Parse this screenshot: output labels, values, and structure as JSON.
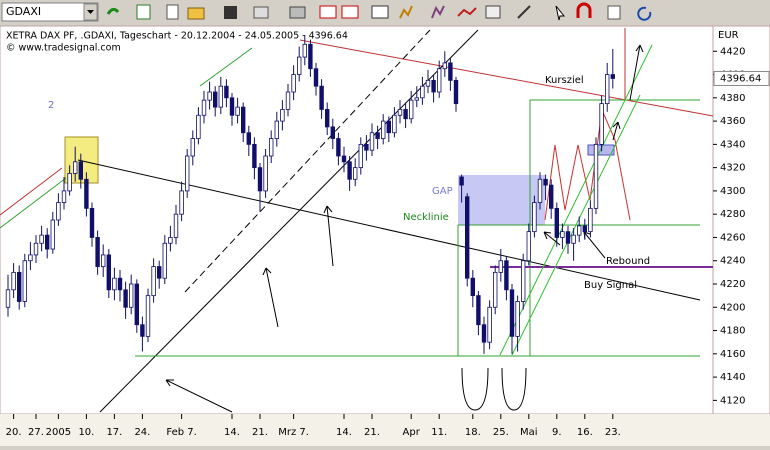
{
  "toolbar": {
    "symbol": "GDAXI"
  },
  "chart_data": {
    "type": "candlestick",
    "title": "XETRA DAX PF, .GDAXI, Tageschart - 20.12.2004 - 24.05.2005 - 4396.64",
    "subtitle": "© www.tradesignal.com",
    "y_unit": "EUR",
    "last_price": 4396.64,
    "annotations": [
      "2",
      "GAP",
      "Necklinie",
      "Kursziel",
      "Rebound",
      "Buy Signal"
    ],
    "ylim": [
      4110,
      4440
    ],
    "yticks": [
      4120,
      4140,
      4160,
      4180,
      4200,
      4220,
      4240,
      4260,
      4280,
      4300,
      4320,
      4340,
      4360,
      4380,
      4400,
      4420
    ],
    "xticks": [
      {
        "value": 1,
        "label": "20."
      },
      {
        "value": 5,
        "label": "27."
      },
      {
        "value": 9,
        "label": "2005"
      },
      {
        "value": 14,
        "label": "10."
      },
      {
        "value": 19,
        "label": "17."
      },
      {
        "value": 24,
        "label": "24."
      },
      {
        "value": 31,
        "label": "Feb 7."
      },
      {
        "value": 40,
        "label": "14."
      },
      {
        "value": 45,
        "label": "21."
      },
      {
        "value": 51,
        "label": "Mrz 7."
      },
      {
        "value": 60,
        "label": "14."
      },
      {
        "value": 65,
        "label": "21."
      },
      {
        "value": 72,
        "label": "Apr"
      },
      {
        "value": 77,
        "label": "11."
      },
      {
        "value": 83,
        "label": "18."
      },
      {
        "value": 88,
        "label": "25."
      },
      {
        "value": 93,
        "label": "Mai"
      },
      {
        "value": 98,
        "label": "9."
      },
      {
        "value": 103,
        "label": "16."
      },
      {
        "value": 108,
        "label": "23."
      }
    ],
    "up_color": "#ffffff",
    "down_color": "#10106a",
    "wick_color": "#10106a",
    "candles": [
      [
        4200,
        4228,
        4192,
        4215
      ],
      [
        4215,
        4238,
        4208,
        4230
      ],
      [
        4230,
        4236,
        4198,
        4205
      ],
      [
        4205,
        4246,
        4200,
        4240
      ],
      [
        4240,
        4256,
        4232,
        4245
      ],
      [
        4245,
        4262,
        4238,
        4255
      ],
      [
        4255,
        4270,
        4248,
        4262
      ],
      [
        4262,
        4268,
        4242,
        4250
      ],
      [
        4250,
        4282,
        4246,
        4275
      ],
      [
        4275,
        4298,
        4270,
        4290
      ],
      [
        4290,
        4312,
        4284,
        4300
      ],
      [
        4300,
        4322,
        4296,
        4315
      ],
      [
        4315,
        4338,
        4308,
        4325
      ],
      [
        4325,
        4332,
        4302,
        4310
      ],
      [
        4310,
        4316,
        4278,
        4285
      ],
      [
        4285,
        4290,
        4252,
        4260
      ],
      [
        4260,
        4266,
        4228,
        4235
      ],
      [
        4235,
        4254,
        4226,
        4245
      ],
      [
        4245,
        4250,
        4208,
        4215
      ],
      [
        4215,
        4234,
        4206,
        4225
      ],
      [
        4225,
        4232,
        4205,
        4215
      ],
      [
        4215,
        4222,
        4190,
        4200
      ],
      [
        4200,
        4228,
        4194,
        4220
      ],
      [
        4220,
        4224,
        4178,
        4185
      ],
      [
        4185,
        4192,
        4162,
        4175
      ],
      [
        4175,
        4216,
        4170,
        4210
      ],
      [
        4210,
        4242,
        4204,
        4235
      ],
      [
        4235,
        4240,
        4216,
        4225
      ],
      [
        4225,
        4262,
        4220,
        4255
      ],
      [
        4255,
        4270,
        4248,
        4260
      ],
      [
        4260,
        4288,
        4254,
        4280
      ],
      [
        4280,
        4308,
        4274,
        4300
      ],
      [
        4300,
        4336,
        4294,
        4330
      ],
      [
        4330,
        4352,
        4322,
        4345
      ],
      [
        4345,
        4372,
        4340,
        4365
      ],
      [
        4365,
        4386,
        4358,
        4378
      ],
      [
        4378,
        4394,
        4370,
        4385
      ],
      [
        4385,
        4390,
        4364,
        4372
      ],
      [
        4372,
        4398,
        4366,
        4390
      ],
      [
        4390,
        4396,
        4372,
        4380
      ],
      [
        4380,
        4384,
        4356,
        4365
      ],
      [
        4365,
        4380,
        4358,
        4372
      ],
      [
        4372,
        4376,
        4342,
        4350
      ],
      [
        4350,
        4356,
        4330,
        4340
      ],
      [
        4340,
        4346,
        4310,
        4320
      ],
      [
        4320,
        4324,
        4282,
        4300
      ],
      [
        4300,
        4336,
        4294,
        4330
      ],
      [
        4330,
        4352,
        4324,
        4345
      ],
      [
        4345,
        4368,
        4338,
        4360
      ],
      [
        4360,
        4378,
        4352,
        4370
      ],
      [
        4370,
        4392,
        4364,
        4385
      ],
      [
        4385,
        4408,
        4378,
        4400
      ],
      [
        4400,
        4424,
        4394,
        4415
      ],
      [
        4415,
        4434,
        4408,
        4426
      ],
      [
        4426,
        4430,
        4398,
        4405
      ],
      [
        4405,
        4410,
        4382,
        4390
      ],
      [
        4390,
        4396,
        4362,
        4370
      ],
      [
        4370,
        4376,
        4348,
        4355
      ],
      [
        4355,
        4362,
        4336,
        4345
      ],
      [
        4345,
        4350,
        4322,
        4330
      ],
      [
        4330,
        4338,
        4316,
        4325
      ],
      [
        4325,
        4330,
        4300,
        4310
      ],
      [
        4310,
        4328,
        4304,
        4320
      ],
      [
        4320,
        4346,
        4314,
        4340
      ],
      [
        4340,
        4348,
        4326,
        4335
      ],
      [
        4335,
        4358,
        4330,
        4350
      ],
      [
        4350,
        4356,
        4336,
        4345
      ],
      [
        4345,
        4366,
        4340,
        4360
      ],
      [
        4360,
        4364,
        4342,
        4350
      ],
      [
        4350,
        4372,
        4346,
        4365
      ],
      [
        4365,
        4378,
        4358,
        4370
      ],
      [
        4370,
        4376,
        4354,
        4362
      ],
      [
        4362,
        4386,
        4358,
        4378
      ],
      [
        4378,
        4390,
        4372,
        4380
      ],
      [
        4380,
        4398,
        4374,
        4390
      ],
      [
        4390,
        4404,
        4384,
        4395
      ],
      [
        4395,
        4400,
        4376,
        4385
      ],
      [
        4385,
        4412,
        4380,
        4405
      ],
      [
        4405,
        4420,
        4398,
        4410
      ],
      [
        4410,
        4414,
        4386,
        4395
      ],
      [
        4395,
        4398,
        4368,
        4375
      ],
      [
        4312,
        4314,
        4290,
        4305
      ],
      [
        4295,
        4298,
        4218,
        4225
      ],
      [
        4225,
        4232,
        4200,
        4210
      ],
      [
        4210,
        4214,
        4176,
        4185
      ],
      [
        4185,
        4192,
        4160,
        4170
      ],
      [
        4170,
        4206,
        4164,
        4200
      ],
      [
        4200,
        4236,
        4194,
        4230
      ],
      [
        4230,
        4250,
        4222,
        4240
      ],
      [
        4240,
        4244,
        4206,
        4215
      ],
      [
        4215,
        4220,
        4160,
        4175
      ],
      [
        4175,
        4210,
        4162,
        4205
      ],
      [
        4205,
        4246,
        4198,
        4240
      ],
      [
        4240,
        4272,
        4236,
        4265
      ],
      [
        4265,
        4296,
        4260,
        4290
      ],
      [
        4290,
        4316,
        4284,
        4310
      ],
      [
        4310,
        4314,
        4292,
        4305
      ],
      [
        4305,
        4310,
        4276,
        4285
      ],
      [
        4285,
        4290,
        4252,
        4260
      ],
      [
        4260,
        4272,
        4250,
        4265
      ],
      [
        4265,
        4270,
        4246,
        4255
      ],
      [
        4255,
        4268,
        4240,
        4262
      ],
      [
        4262,
        4278,
        4256,
        4270
      ],
      [
        4270,
        4276,
        4258,
        4265
      ],
      [
        4265,
        4292,
        4260,
        4285
      ],
      [
        4285,
        4346,
        4280,
        4340
      ],
      [
        4340,
        4382,
        4334,
        4375
      ],
      [
        4375,
        4410,
        4368,
        4400
      ],
      [
        4400,
        4422,
        4388,
        4396.64
      ]
    ]
  }
}
